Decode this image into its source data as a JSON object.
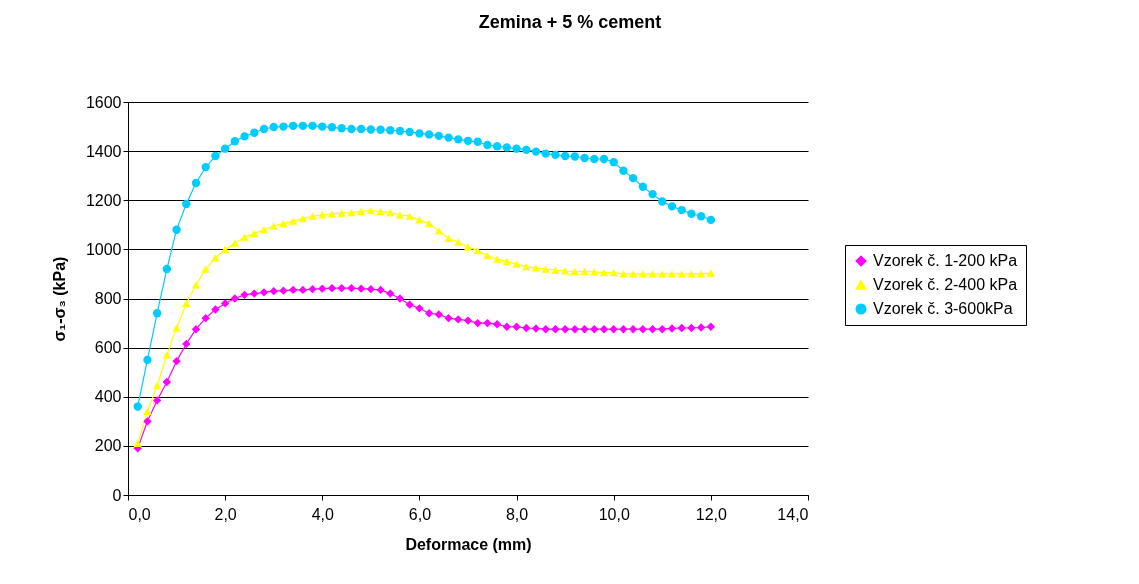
{
  "chart_data": {
    "type": "line",
    "title": "Zemina + 5 % cement",
    "xlabel": "Deformace (mm)",
    "ylabel": "σ₁-σ₃ (kPa)",
    "x": [
      0.2,
      0.4,
      0.6,
      0.8,
      1.0,
      1.2,
      1.4,
      1.6,
      1.8,
      2.0,
      2.2,
      2.4,
      2.6,
      2.8,
      3.0,
      3.2,
      3.4,
      3.6,
      3.8,
      4.0,
      4.2,
      4.4,
      4.6,
      4.8,
      5.0,
      5.2,
      5.4,
      5.6,
      5.8,
      6.0,
      6.2,
      6.4,
      6.6,
      6.8,
      7.0,
      7.2,
      7.4,
      7.6,
      7.8,
      8.0,
      8.2,
      8.4,
      8.6,
      8.8,
      9.0,
      9.2,
      9.4,
      9.6,
      9.8,
      10.0,
      10.2,
      10.4,
      10.6,
      10.8,
      11.0,
      11.2,
      11.4,
      11.6,
      11.8,
      12.0
    ],
    "series": [
      {
        "name": "Vzorek č. 1-200 kPa",
        "color": "#ff00ff",
        "marker": "diamond",
        "values": [
          190,
          300,
          385,
          460,
          545,
          615,
          675,
          720,
          755,
          780,
          800,
          815,
          820,
          825,
          830,
          832,
          835,
          835,
          838,
          840,
          842,
          842,
          842,
          840,
          838,
          835,
          820,
          800,
          775,
          760,
          740,
          735,
          720,
          715,
          710,
          700,
          700,
          695,
          685,
          685,
          680,
          678,
          675,
          675,
          675,
          675,
          675,
          675,
          675,
          675,
          675,
          675,
          675,
          675,
          675,
          678,
          680,
          680,
          682,
          685
        ]
      },
      {
        "name": "Vzorek č. 2-400 kPa",
        "color": "#ffff00",
        "marker": "triangle",
        "values": [
          210,
          340,
          445,
          570,
          680,
          780,
          855,
          920,
          965,
          1000,
          1025,
          1050,
          1065,
          1080,
          1095,
          1105,
          1115,
          1125,
          1135,
          1140,
          1145,
          1148,
          1150,
          1155,
          1158,
          1155,
          1150,
          1140,
          1135,
          1120,
          1105,
          1075,
          1045,
          1030,
          1010,
          995,
          975,
          960,
          950,
          940,
          930,
          925,
          920,
          915,
          912,
          910,
          910,
          908,
          905,
          905,
          900,
          900,
          900,
          900,
          900,
          900,
          900,
          900,
          900,
          903
        ]
      },
      {
        "name": "Vzorek č. 3-600kPa",
        "color": "#00ccff",
        "marker": "circle",
        "values": [
          360,
          550,
          740,
          920,
          1080,
          1185,
          1270,
          1335,
          1380,
          1410,
          1440,
          1460,
          1475,
          1490,
          1498,
          1500,
          1503,
          1503,
          1503,
          1500,
          1497,
          1493,
          1490,
          1490,
          1488,
          1487,
          1485,
          1482,
          1478,
          1472,
          1468,
          1462,
          1455,
          1448,
          1442,
          1438,
          1425,
          1420,
          1415,
          1410,
          1405,
          1398,
          1390,
          1385,
          1380,
          1378,
          1372,
          1368,
          1368,
          1355,
          1320,
          1290,
          1255,
          1225,
          1195,
          1175,
          1160,
          1145,
          1135,
          1120
        ]
      }
    ],
    "xlim": [
      0,
      14
    ],
    "xticks": [
      {
        "value": 0,
        "label": "0,0"
      },
      {
        "value": 2,
        "label": "2,0"
      },
      {
        "value": 4,
        "label": "4,0"
      },
      {
        "value": 6,
        "label": "6,0"
      },
      {
        "value": 8,
        "label": "8,0"
      },
      {
        "value": 10,
        "label": "10,0"
      },
      {
        "value": 12,
        "label": "12,0"
      },
      {
        "value": 14,
        "label": "14,0"
      }
    ],
    "ylim": [
      0,
      1600
    ],
    "yticks": [
      0,
      200,
      400,
      600,
      800,
      1000,
      1200,
      1400,
      1600
    ],
    "grid": "y",
    "legend": "right"
  }
}
